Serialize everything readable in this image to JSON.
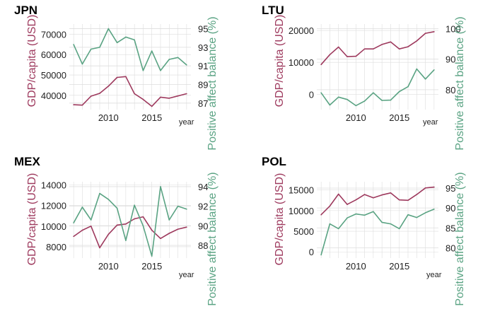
{
  "colors": {
    "gdp": "#9e3a5e",
    "affect": "#5aa383",
    "grid": "#dddddd",
    "text": "#222222",
    "title": "#000000"
  },
  "chart_data": [
    {
      "type": "line",
      "title": "JPN",
      "xlabel": "year",
      "ylabel": "GDP/capita (USD)",
      "y2label": "Positive affect balance (%)",
      "xlim": [
        2005.5,
        2019.5
      ],
      "ylim": [
        33000,
        75000
      ],
      "y2lim": [
        86.3,
        95.5
      ],
      "xticks": [
        2010,
        2015
      ],
      "yticks": [
        40000,
        50000,
        60000,
        70000
      ],
      "ytick_labels": [
        "40000",
        "50000",
        "60000",
        "70000"
      ],
      "y2ticks": [
        87,
        89,
        91,
        93,
        95
      ],
      "y2tick_labels": [
        "87",
        "89",
        "91",
        "93",
        "95"
      ],
      "x": [
        2006,
        2007,
        2008,
        2009,
        2010,
        2011,
        2012,
        2013,
        2014,
        2015,
        2016,
        2017,
        2018,
        2019
      ],
      "series": [
        {
          "axis": "left",
          "values": [
            35400,
            35200,
            39600,
            41000,
            44500,
            48800,
            49200,
            40800,
            38000,
            34600,
            39100,
            38600,
            39700,
            40800
          ]
        },
        {
          "axis": "right",
          "values": [
            93.3,
            91.2,
            92.8,
            93.0,
            95.0,
            93.5,
            94.1,
            93.8,
            90.5,
            92.6,
            90.5,
            91.7,
            91.9,
            91.1
          ]
        }
      ]
    },
    {
      "type": "line",
      "title": "LTU",
      "xlabel": "year",
      "ylabel": "GDP/capita (USD)",
      "y2label": "Positive affect balance (%)",
      "xlim": [
        2005.5,
        2019.5
      ],
      "ylim": [
        -4800,
        22000
      ],
      "y2lim": [
        73.5,
        101.5
      ],
      "xticks": [
        2010,
        2015
      ],
      "yticks": [
        0,
        10000,
        20000
      ],
      "ytick_labels": [
        "0",
        "10000",
        "20000"
      ],
      "y2ticks": [
        80,
        90,
        100
      ],
      "y2tick_labels": [
        "80",
        "90",
        "100"
      ],
      "x": [
        2006,
        2007,
        2008,
        2009,
        2010,
        2011,
        2012,
        2013,
        2014,
        2015,
        2016,
        2017,
        2018,
        2019
      ],
      "series": [
        {
          "axis": "left",
          "values": [
            9300,
            12400,
            14800,
            11800,
            11900,
            14200,
            14200,
            15600,
            16400,
            14200,
            14900,
            16700,
            19100,
            19600
          ]
        },
        {
          "axis": "right",
          "values": [
            79.0,
            75.0,
            77.6,
            76.8,
            74.8,
            76.3,
            79.0,
            76.5,
            76.6,
            79.4,
            81.0,
            86.8,
            83.5,
            86.5
          ]
        }
      ]
    },
    {
      "type": "line",
      "title": "MEX",
      "xlabel": "year",
      "ylabel": "GDP/capita (USD)",
      "y2label": "Positive affect balance (%)",
      "xlim": [
        2005.5,
        2019.5
      ],
      "ylim": [
        6900,
        14300
      ],
      "y2lim": [
        86.7,
        94.5
      ],
      "xticks": [
        2010,
        2015
      ],
      "yticks": [
        8000,
        10000,
        12000,
        14000
      ],
      "ytick_labels": [
        "8000",
        "10000",
        "12000",
        "14000"
      ],
      "y2ticks": [
        88,
        90,
        92,
        94
      ],
      "y2tick_labels": [
        "88",
        "90",
        "92",
        "94"
      ],
      "x": [
        2006,
        2007,
        2008,
        2009,
        2010,
        2011,
        2012,
        2013,
        2014,
        2015,
        2016,
        2017,
        2018,
        2019
      ],
      "series": [
        {
          "axis": "left",
          "values": [
            9000,
            9600,
            10000,
            7900,
            9200,
            10100,
            10200,
            10700,
            10900,
            9600,
            8800,
            9300,
            9700,
            9900
          ]
        },
        {
          "axis": "right",
          "values": [
            90.3,
            91.9,
            90.6,
            93.3,
            92.7,
            91.8,
            88.5,
            92.1,
            90.0,
            86.9,
            94.0,
            90.6,
            92.0,
            91.7
          ]
        }
      ]
    },
    {
      "type": "line",
      "title": "POL",
      "xlabel": "year",
      "ylabel": "GDP/capita (USD)",
      "y2label": "Positive affect balance (%)",
      "xlim": [
        2005.5,
        2019.5
      ],
      "ylim": [
        -1500,
        17000
      ],
      "y2lim": [
        77.4,
        96.6
      ],
      "xticks": [
        2010,
        2015
      ],
      "yticks": [
        0,
        5000,
        10000,
        15000
      ],
      "ytick_labels": [
        "0",
        "5000",
        "10000",
        "15000"
      ],
      "y2ticks": [
        80,
        85,
        90,
        95
      ],
      "y2tick_labels": [
        "80",
        "85",
        "90",
        "95"
      ],
      "x": [
        2006,
        2007,
        2008,
        2009,
        2010,
        2011,
        2012,
        2013,
        2014,
        2015,
        2016,
        2017,
        2018,
        2019
      ],
      "series": [
        {
          "axis": "left",
          "values": [
            9000,
            11100,
            14000,
            11500,
            12600,
            13900,
            13100,
            13800,
            14300,
            12600,
            12500,
            13900,
            15500,
            15700
          ]
        },
        {
          "axis": "right",
          "values": [
            78.2,
            86.0,
            84.8,
            87.5,
            88.5,
            88.2,
            89.1,
            86.4,
            86.0,
            84.8,
            88.3,
            87.6,
            88.8,
            89.7
          ]
        }
      ]
    }
  ]
}
